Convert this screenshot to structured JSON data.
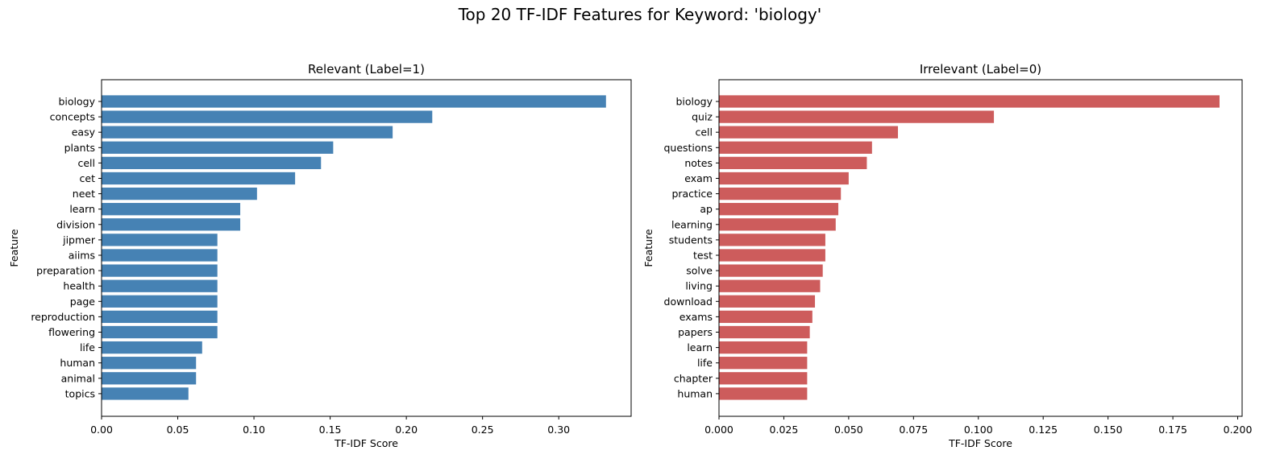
{
  "figure": {
    "suptitle": "Top 20 TF-IDF Features for Keyword: 'biology'"
  },
  "chart_data": [
    {
      "type": "bar",
      "orientation": "horizontal",
      "title": "Relevant (Label=1)",
      "xlabel": "TF-IDF Score",
      "ylabel": "Feature",
      "color": "#4682b4",
      "xlim": [
        0.0,
        0.3475
      ],
      "xticks": [
        0.0,
        0.05,
        0.1,
        0.15,
        0.2,
        0.25,
        0.3
      ],
      "xtick_labels": [
        "0.00",
        "0.05",
        "0.10",
        "0.15",
        "0.20",
        "0.25",
        "0.30"
      ],
      "grid": false,
      "categories": [
        "biology",
        "concepts",
        "easy",
        "plants",
        "cell",
        "cet",
        "neet",
        "learn",
        "division",
        "jipmer",
        "aiims",
        "preparation",
        "health",
        "page",
        "reproduction",
        "flowering",
        "life",
        "human",
        "animal",
        "topics"
      ],
      "values": [
        0.331,
        0.217,
        0.191,
        0.152,
        0.144,
        0.127,
        0.102,
        0.091,
        0.091,
        0.076,
        0.076,
        0.076,
        0.076,
        0.076,
        0.076,
        0.076,
        0.066,
        0.062,
        0.062,
        0.057
      ]
    },
    {
      "type": "bar",
      "orientation": "horizontal",
      "title": "Irrelevant (Label=0)",
      "xlabel": "TF-IDF Score",
      "ylabel": "Feature",
      "color": "#cd5c5c",
      "xlim": [
        0.0,
        0.2017
      ],
      "xticks": [
        0.0,
        0.025,
        0.05,
        0.075,
        0.1,
        0.125,
        0.15,
        0.175,
        0.2
      ],
      "xtick_labels": [
        "0.000",
        "0.025",
        "0.050",
        "0.075",
        "0.100",
        "0.125",
        "0.150",
        "0.175",
        "0.200"
      ],
      "grid": false,
      "categories": [
        "biology",
        "quiz",
        "cell",
        "questions",
        "notes",
        "exam",
        "practice",
        "ap",
        "learning",
        "students",
        "test",
        "solve",
        "living",
        "download",
        "exams",
        "papers",
        "learn",
        "life",
        "chapter",
        "human"
      ],
      "values": [
        0.193,
        0.106,
        0.069,
        0.059,
        0.057,
        0.05,
        0.047,
        0.046,
        0.045,
        0.041,
        0.041,
        0.04,
        0.039,
        0.037,
        0.036,
        0.035,
        0.034,
        0.034,
        0.034,
        0.034
      ]
    }
  ]
}
